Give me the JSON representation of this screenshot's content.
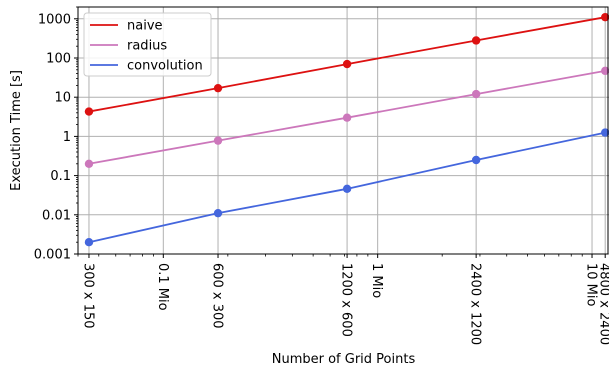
{
  "chart_data": {
    "type": "line",
    "xlabel": "Number of Grid Points",
    "ylabel": "Execution Time [s]",
    "xscale": "log",
    "yscale": "log",
    "xlim": [
      40000,
      12000000
    ],
    "ylim": [
      0.001,
      2000
    ],
    "grid": true,
    "legend_position": "top-left",
    "x": [
      45000,
      180000,
      720000,
      2880000,
      11520000
    ],
    "series": [
      {
        "name": "naive",
        "color": "#dd1111",
        "values": [
          4.3,
          17,
          70,
          280,
          1100
        ]
      },
      {
        "name": "radius",
        "color": "#cc77bb",
        "values": [
          0.2,
          0.78,
          3.0,
          12,
          47
        ]
      },
      {
        "name": "convolution",
        "color": "#4466dd",
        "values": [
          0.002,
          0.011,
          0.046,
          0.25,
          1.25
        ]
      }
    ],
    "y_ticks": [
      {
        "value": 0.001,
        "label": "0.001"
      },
      {
        "value": 0.01,
        "label": "0.01"
      },
      {
        "value": 0.1,
        "label": "0.1"
      },
      {
        "value": 1,
        "label": "1"
      },
      {
        "value": 10,
        "label": "10"
      },
      {
        "value": 100,
        "label": "100"
      },
      {
        "value": 1000,
        "label": "1000"
      }
    ],
    "x_ticks_primary": [
      {
        "value": 45000,
        "label": "300 x 150"
      },
      {
        "value": 180000,
        "label": "600 x 300"
      },
      {
        "value": 720000,
        "label": "1200 x 600"
      },
      {
        "value": 2880000,
        "label": "2400 x 1200"
      },
      {
        "value": 11520000,
        "label": "4800 x 2400"
      }
    ],
    "x_ticks_secondary": [
      {
        "value": 100000,
        "label": "0.1 Mio"
      },
      {
        "value": 1000000,
        "label": "1 Mio"
      },
      {
        "value": 10000000,
        "label": "10 Mio"
      }
    ]
  }
}
